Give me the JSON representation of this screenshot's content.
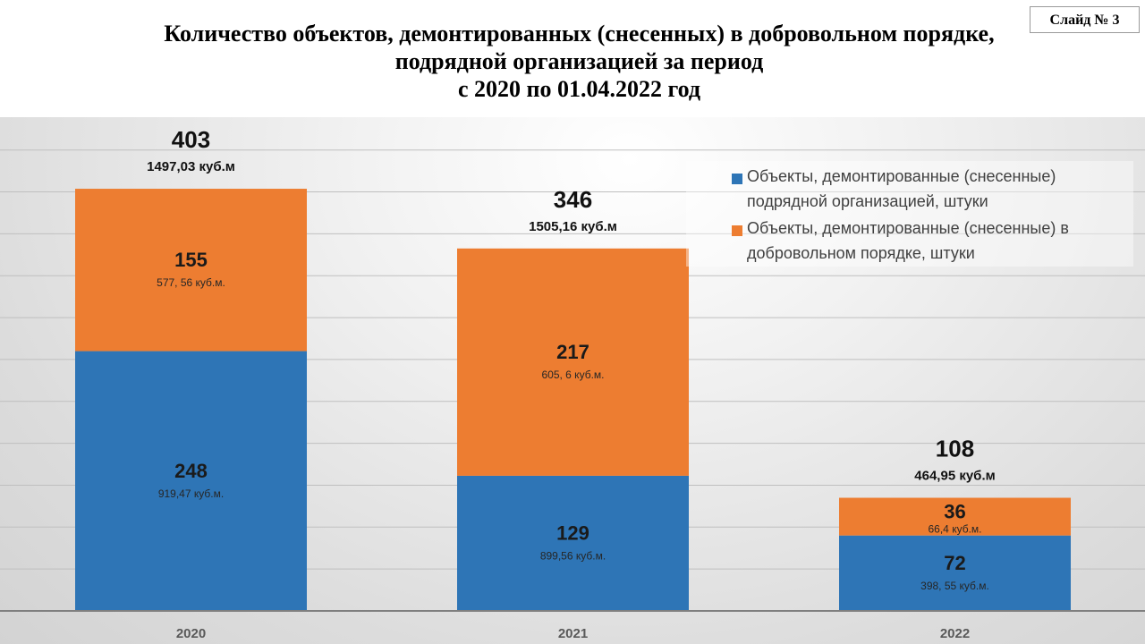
{
  "title_lines": [
    "Количество объектов, демонтированных (снесенных) в добровольном порядке,",
    "подрядной организацией за период",
    "с 2020 по 01.04.2022 год"
  ],
  "slide_label": "Слайд № 3",
  "chart_data": {
    "type": "bar",
    "stacked": true,
    "categories": [
      "2020",
      "2021",
      "2022"
    ],
    "ylim": [
      0,
      450
    ],
    "grid": true,
    "legend_position": "top-right",
    "series": [
      {
        "name": "Объекты, демонтированные (снесенные) подрядной организацией, штуки",
        "color": "#2E75B6",
        "values": [
          248,
          129,
          72
        ],
        "volume_labels": [
          "919,47 куб.м.",
          "899,56 куб.м.",
          "398, 55 куб.м."
        ]
      },
      {
        "name": "Объекты, демонтированные (снесенные) в добровольном порядке, штуки",
        "color": "#ED7D31",
        "values": [
          155,
          217,
          36
        ],
        "volume_labels": [
          "577, 56 куб.м.",
          "605, 6 куб.м.",
          "66,4 куб.м."
        ]
      }
    ],
    "totals": [
      403,
      346,
      108
    ],
    "total_volume_labels": [
      "1497,03 куб.м",
      "1505,16 куб.м",
      "464,95 куб.м"
    ]
  }
}
